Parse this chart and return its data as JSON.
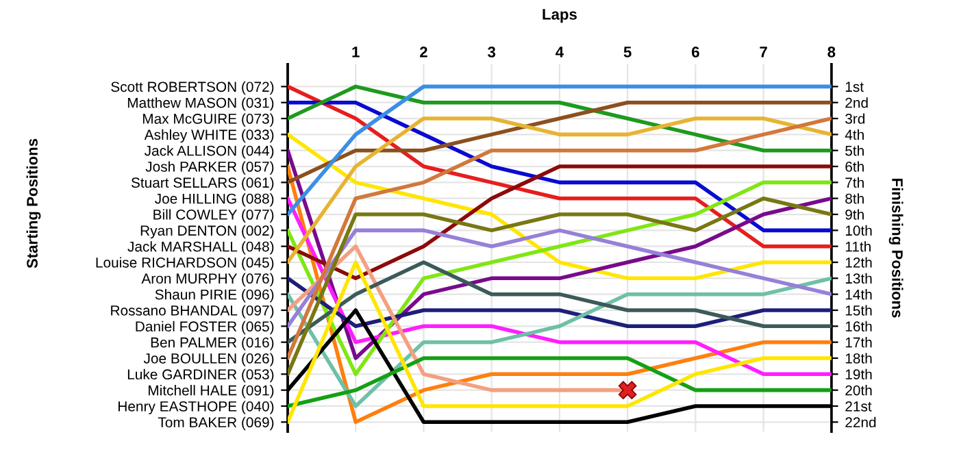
{
  "chart_data": {
    "type": "line",
    "xlabel": "Laps",
    "ylabel": "Finishing Positions",
    "annotations": [
      "Starting Positions"
    ],
    "x": [
      0,
      1,
      2,
      3,
      4,
      5,
      6,
      7,
      8
    ],
    "xlim": [
      0,
      8
    ],
    "xticks": [
      1,
      2,
      3,
      4,
      5,
      6,
      7,
      8
    ],
    "y_categories": [
      "Scott ROBERTSON (072)",
      "Matthew MASON (031)",
      "Max McGUIRE (073)",
      "Ashley WHITE (033)",
      "Jack ALLISON (044)",
      "Josh PARKER (057)",
      "Stuart SELLARS (061)",
      "Joe HILLING (088)",
      "Bill COWLEY (077)",
      "Ryan DENTON (002)",
      "Jack MARSHALL (048)",
      "Louise RICHARDSON (045)",
      "Aron MURPHY (076)",
      "Shaun PIRIE (096)",
      "Rossano BHANDAL (097)",
      "Daniel FOSTER (065)",
      "Ben PALMER (016)",
      "Joe BOULLEN (026)",
      "Luke GARDINER (053)",
      "Mitchell HALE (091)",
      "Henry EASTHOPE (040)",
      "Tom BAKER (069)"
    ],
    "ylim": [
      22.6,
      -0.4
    ],
    "yticks": [
      {
        "value": 1,
        "label": "1st"
      },
      {
        "value": 2,
        "label": "2nd"
      },
      {
        "value": 3,
        "label": "3rd"
      },
      {
        "value": 4,
        "label": "4th"
      },
      {
        "value": 5,
        "label": "5th"
      },
      {
        "value": 6,
        "label": "6th"
      },
      {
        "value": 7,
        "label": "7th"
      },
      {
        "value": 8,
        "label": "8th"
      },
      {
        "value": 9,
        "label": "9th"
      },
      {
        "value": 10,
        "label": "10th"
      },
      {
        "value": 11,
        "label": "11th"
      },
      {
        "value": 12,
        "label": "12th"
      },
      {
        "value": 13,
        "label": "13th"
      },
      {
        "value": 14,
        "label": "14th"
      },
      {
        "value": 15,
        "label": "15th"
      },
      {
        "value": 16,
        "label": "16th"
      },
      {
        "value": 17,
        "label": "17th"
      },
      {
        "value": 18,
        "label": "18th"
      },
      {
        "value": 19,
        "label": "19th"
      },
      {
        "value": 20,
        "label": "20th"
      },
      {
        "value": 21,
        "label": "21st"
      },
      {
        "value": 22,
        "label": "22nd"
      }
    ],
    "grid": true,
    "legend": false,
    "marker": "none",
    "line_style": "solid",
    "series": [
      {
        "color": "#e61e1e",
        "values": [
          1,
          3,
          6,
          7,
          8,
          8,
          8,
          11,
          11
        ]
      },
      {
        "color": "#0a0ad2",
        "values": [
          2,
          2,
          4,
          6,
          7,
          7,
          7,
          10,
          10
        ]
      },
      {
        "color": "#1e9a1e",
        "values": [
          3,
          1,
          2,
          2,
          2,
          3,
          4,
          5,
          5
        ]
      },
      {
        "color": "#ffe600",
        "values": [
          4,
          7,
          8,
          9,
          12,
          13,
          13,
          12,
          12
        ]
      },
      {
        "color": "#780a8c",
        "values": [
          5,
          18,
          14,
          13,
          13,
          12,
          11,
          9,
          8
        ]
      },
      {
        "color": "#ff7f0e",
        "values": [
          6,
          22,
          20,
          19,
          19,
          19,
          18,
          17,
          17
        ]
      },
      {
        "color": "#8c501e",
        "values": [
          7,
          5,
          5,
          4,
          3,
          2,
          2,
          2,
          2
        ]
      },
      {
        "color": "#ff1eff",
        "values": [
          8,
          17,
          16,
          16,
          17,
          17,
          17,
          19,
          19
        ]
      },
      {
        "color": "#3c8ee6",
        "values": [
          9,
          4,
          1,
          1,
          1,
          1,
          1,
          1,
          1
        ]
      },
      {
        "color": "#80e614",
        "values": [
          10,
          19,
          13,
          12,
          11,
          10,
          9,
          7,
          7
        ]
      },
      {
        "color": "#8c0a0a",
        "values": [
          11,
          13,
          11,
          8,
          6,
          6,
          6,
          6,
          6
        ]
      },
      {
        "color": "#e6b432",
        "values": [
          12,
          6,
          3,
          3,
          4,
          4,
          3,
          3,
          4
        ]
      },
      {
        "color": "#1e1e7a",
        "values": [
          13,
          16,
          15,
          15,
          15,
          16,
          16,
          15,
          15
        ]
      },
      {
        "color": "#6ec0a8",
        "values": [
          14,
          21,
          17,
          17,
          16,
          14,
          14,
          14,
          13
        ]
      },
      {
        "color": "#f4a080",
        "values": [
          15,
          11,
          19,
          20,
          20,
          20,
          null,
          null,
          null
        ]
      },
      {
        "color": "#9680d8",
        "values": [
          16,
          10,
          10,
          11,
          10,
          11,
          12,
          13,
          14
        ]
      },
      {
        "color": "#3c5a5a",
        "values": [
          17,
          14,
          12,
          14,
          14,
          15,
          15,
          16,
          16
        ]
      },
      {
        "color": "#d2783c",
        "values": [
          18,
          8,
          7,
          5,
          5,
          5,
          5,
          4,
          3
        ]
      },
      {
        "color": "#787814",
        "values": [
          19,
          9,
          9,
          10,
          9,
          9,
          10,
          8,
          9
        ]
      },
      {
        "color": "#000000",
        "values": [
          20,
          15,
          22,
          22,
          22,
          22,
          21,
          21,
          21
        ]
      },
      {
        "color": "#14a014",
        "values": [
          21,
          20,
          18,
          18,
          18,
          18,
          20,
          20,
          20
        ]
      },
      {
        "color": "#ffe600",
        "values": [
          22,
          12,
          21,
          21,
          21,
          21,
          19,
          18,
          18
        ]
      },
      {
        "type": "scatter",
        "x": [
          5
        ],
        "values": [
          20
        ],
        "color": "#e02020",
        "marker": "cross"
      }
    ]
  }
}
